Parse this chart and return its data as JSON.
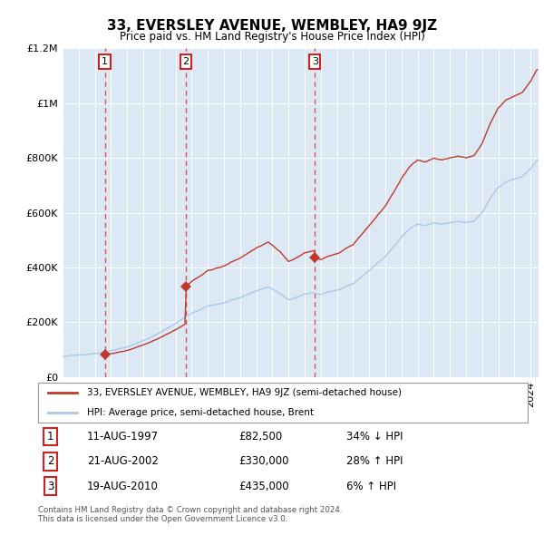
{
  "title": "33, EVERSLEY AVENUE, WEMBLEY, HA9 9JZ",
  "subtitle": "Price paid vs. HM Land Registry's House Price Index (HPI)",
  "bg_color": "#dce9f5",
  "transactions": [
    {
      "num": 1,
      "date": 1997.625,
      "price": 82500,
      "date_str": "11-AUG-1997",
      "pct": "34% ↓ HPI"
    },
    {
      "num": 2,
      "date": 2002.642,
      "price": 330000,
      "date_str": "21-AUG-2002",
      "pct": "28% ↑ HPI"
    },
    {
      "num": 3,
      "date": 2010.633,
      "price": 435000,
      "date_str": "19-AUG-2010",
      "pct": "6% ↑ HPI"
    }
  ],
  "hpi_line_color": "#adc8e6",
  "price_line_color": "#c0392b",
  "dashed_line_color": "#e05050",
  "marker_color": "#c0392b",
  "ylim": [
    0,
    1200000
  ],
  "xlim": [
    1995.0,
    2024.5
  ],
  "yticks": [
    0,
    200000,
    400000,
    600000,
    800000,
    1000000,
    1200000
  ],
  "ylabel_map": {
    "0": "£0",
    "200000": "£200K",
    "400000": "£400K",
    "600000": "£600K",
    "800000": "£800K",
    "1000000": "£1M",
    "1200000": "£1.2M"
  },
  "legend_text1": "33, EVERSLEY AVENUE, WEMBLEY, HA9 9JZ (semi-detached house)",
  "legend_text2": "HPI: Average price, semi-detached house, Brent",
  "footer": "Contains HM Land Registry data © Crown copyright and database right 2024.\nThis data is licensed under the Open Government Licence v3.0."
}
